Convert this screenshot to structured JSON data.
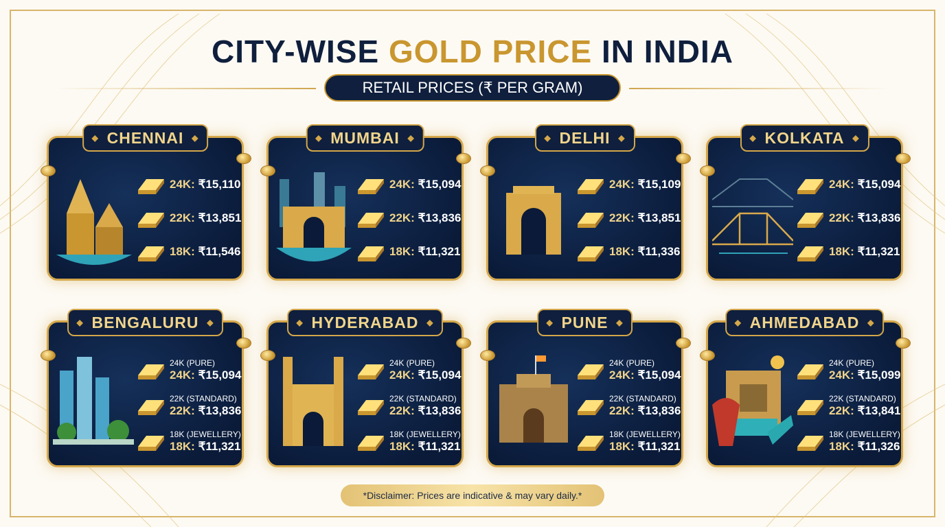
{
  "header": {
    "title_part1": "CITY-WISE ",
    "title_part2": "GOLD PRICE",
    "title_part3": " IN INDIA",
    "subtitle": "RETAIL PRICES (₹ PER GRAM)"
  },
  "colors": {
    "navy": "#0f1f3d",
    "gold": "#c9962f",
    "card_bg": "#0a1a38",
    "karat_label": "#f1d48b"
  },
  "cities": [
    {
      "name": "CHENNAI",
      "landmark": "temple-icon",
      "prices": [
        {
          "karat": "24K:",
          "value": "₹15,110"
        },
        {
          "karat": "22K:",
          "value": "₹13,851"
        },
        {
          "karat": "18K:",
          "value": "₹11,546"
        }
      ]
    },
    {
      "name": "MUMBAI",
      "landmark": "gateway-of-india-icon",
      "prices": [
        {
          "karat": "24K:",
          "value": "₹15,094"
        },
        {
          "karat": "22K:",
          "value": "₹13,836"
        },
        {
          "karat": "18K:",
          "value": "₹11,321"
        }
      ]
    },
    {
      "name": "DELHI",
      "landmark": "india-gate-icon",
      "prices": [
        {
          "karat": "24K:",
          "value": "₹15,109"
        },
        {
          "karat": "22K:",
          "value": "₹13,851"
        },
        {
          "karat": "18K:",
          "value": "₹11,336"
        }
      ]
    },
    {
      "name": "KOLKATA",
      "landmark": "howrah-bridge-icon",
      "prices": [
        {
          "karat": "24K:",
          "value": "₹15,094"
        },
        {
          "karat": "22K:",
          "value": "₹13,836"
        },
        {
          "karat": "18K:",
          "value": "₹11,321"
        }
      ]
    },
    {
      "name": "BENGALURU",
      "landmark": "skyline-icon",
      "prices": [
        {
          "label": "24K (PURE)",
          "karat": "24K:",
          "value": "₹15,094"
        },
        {
          "label": "22K (STANDARD)",
          "karat": "22K:",
          "value": "₹13,836"
        },
        {
          "label": "18K (JEWELLERY)",
          "karat": "18K:",
          "value": "₹11,321"
        }
      ]
    },
    {
      "name": "HYDERABAD",
      "landmark": "charminar-icon",
      "prices": [
        {
          "label": "24K (PURE)",
          "karat": "24K:",
          "value": "₹15,094"
        },
        {
          "label": "22K (STANDARD)",
          "karat": "22K:",
          "value": "₹13,836"
        },
        {
          "label": "18K (JEWELLERY)",
          "karat": "18K:",
          "value": "₹11,321"
        }
      ]
    },
    {
      "name": "PUNE",
      "landmark": "shaniwar-wada-icon",
      "prices": [
        {
          "label": "24K (PURE)",
          "karat": "24K:",
          "value": "₹15,094"
        },
        {
          "label": "22K (STANDARD)",
          "karat": "22K:",
          "value": "₹13,836"
        },
        {
          "label": "18K (JEWELLERY)",
          "karat": "18K:",
          "value": "₹11,321"
        }
      ]
    },
    {
      "name": "AHMEDABAD",
      "landmark": "stepwell-icon",
      "prices": [
        {
          "label": "24K (PURE)",
          "karat": "24K:",
          "value": "₹15,099"
        },
        {
          "label": "22K (STANDARD)",
          "karat": "22K:",
          "value": "₹13,841"
        },
        {
          "label": "18K (JEWELLERY)",
          "karat": "18K:",
          "value": "₹11,326"
        }
      ]
    }
  ],
  "footer": {
    "disclaimer": "*Disclaimer: Prices are indicative & may vary daily.*"
  }
}
